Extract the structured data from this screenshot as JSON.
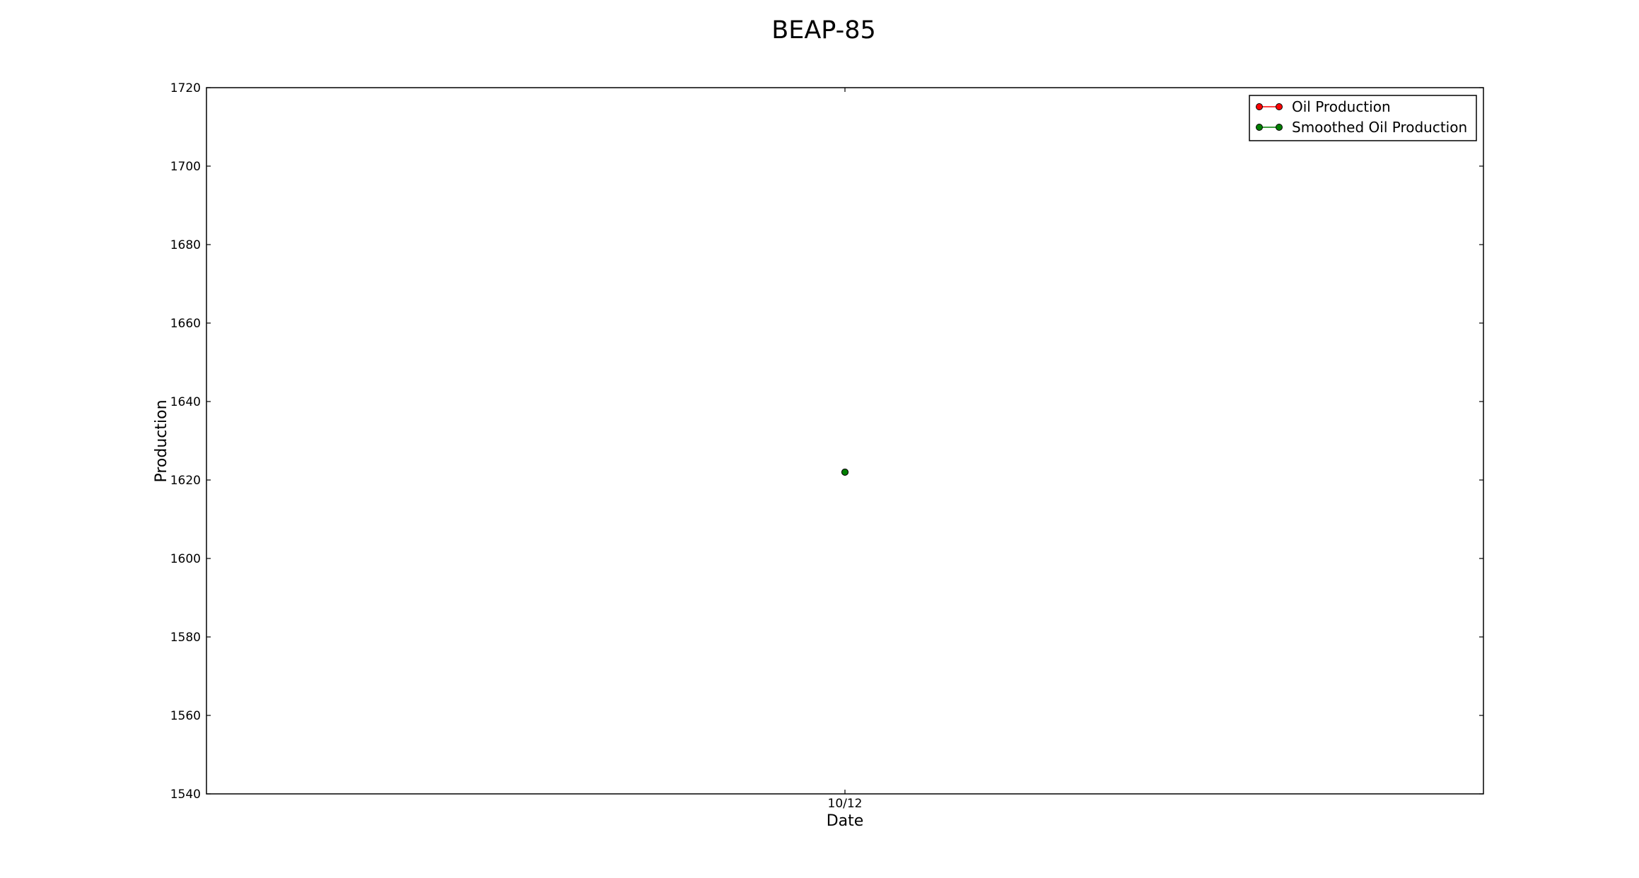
{
  "chart_data": {
    "type": "line",
    "title": "BEAP-85",
    "xlabel": "Date",
    "ylabel": "Production",
    "x_categories": [
      "10/12"
    ],
    "ylim": [
      1540,
      1720
    ],
    "y_ticks": [
      1540,
      1560,
      1580,
      1600,
      1620,
      1640,
      1660,
      1680,
      1700,
      1720
    ],
    "grid": false,
    "legend_position": "top-right",
    "series": [
      {
        "name": "Oil Production",
        "color": "#ff0000",
        "values": [
          1622
        ]
      },
      {
        "name": "Smoothed Oil Production",
        "color": "#007f00",
        "values": [
          1622
        ]
      }
    ]
  }
}
